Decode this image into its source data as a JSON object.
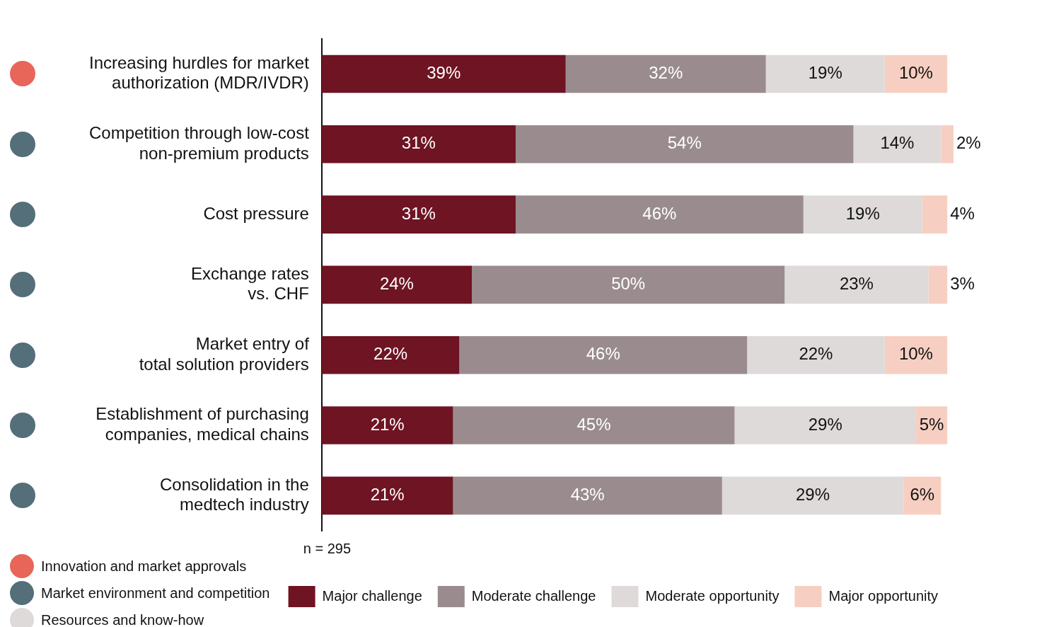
{
  "chart_data": {
    "type": "bar",
    "orientation": "horizontal",
    "stacked": true,
    "categories": [
      "Increasing hurdles for market\nauthorization (MDR/IVDR)",
      "Competition through low-cost\nnon-premium products",
      "Cost pressure",
      "Exchange rates\nvs. CHF",
      "Market entry of\ntotal solution providers",
      "Establishment of purchasing\ncompanies, medical chains",
      "Consolidation in the\nmedtech industry"
    ],
    "series": [
      {
        "name": "Major challenge",
        "color": "#6e1423",
        "values": [
          39,
          31,
          31,
          24,
          22,
          21,
          21
        ],
        "value_labels": [
          "39%",
          "31%",
          "31%",
          "24%",
          "22%",
          "21%",
          "21%"
        ]
      },
      {
        "name": "Moderate challenge",
        "color": "#9a8c8e",
        "values": [
          32,
          54,
          46,
          50,
          46,
          45,
          43
        ],
        "value_labels": [
          "32%",
          "54%",
          "46%",
          "50%",
          "46%",
          "45%",
          "43%"
        ]
      },
      {
        "name": "Moderate opportunity",
        "color": "#dedad9",
        "values": [
          19,
          14,
          19,
          23,
          22,
          29,
          29
        ],
        "value_labels": [
          "19%",
          "14%",
          "19%",
          "23%",
          "22%",
          "29%",
          "29%"
        ]
      },
      {
        "name": "Major opportunity",
        "color": "#f6cfc2",
        "values": [
          10,
          2,
          4,
          3,
          10,
          5,
          6
        ],
        "value_labels": [
          "10%",
          "2%",
          "4%",
          "3%",
          "10%",
          "5%",
          "6%"
        ]
      }
    ],
    "xlim": [
      0,
      101
    ],
    "tick_labels": "y",
    "grid": false,
    "legend": "bottom right",
    "annotations": [
      "n = 295",
      "Innovation and market approvals",
      "Market environment and competition",
      "Resources and know-how"
    ]
  }
}
